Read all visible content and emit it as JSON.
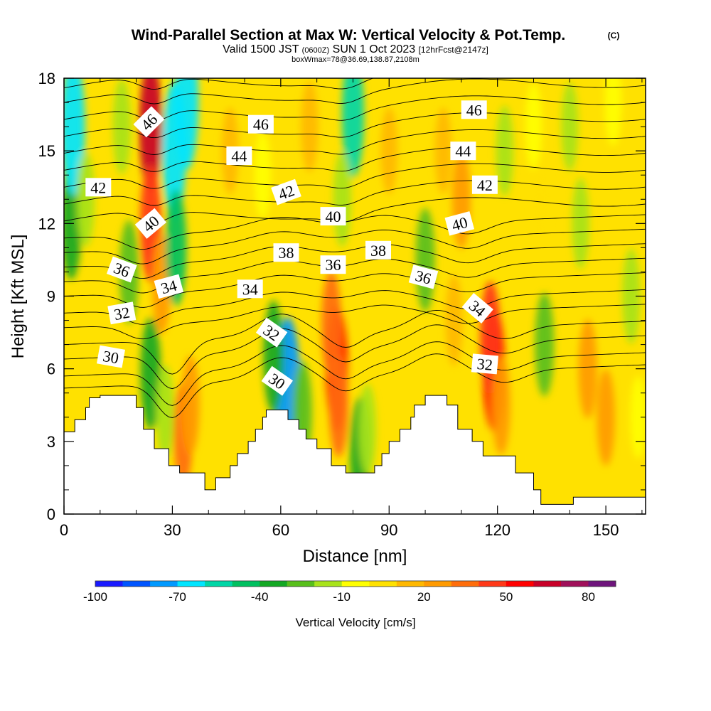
{
  "chart_data": {
    "type": "heatmap",
    "title": "Wind-Parallel Section at Max W: Vertical Velocity & Pot.Temp.",
    "copyright_mark": "(C)",
    "subtitle": {
      "valid": "Valid 1500 JST",
      "utc": "(0600Z)",
      "date": "SUN 1 Oct 2023",
      "forecast": "[12hrFcst@2147z]"
    },
    "box_info": "boxWmax=78@36.69,138.87,2108m",
    "xlabel": "Distance [nm]",
    "ylabel": "Height [Kft MSL]",
    "xlim": [
      0,
      161
    ],
    "ylim": [
      0,
      18
    ],
    "x_ticks": [
      0,
      30,
      60,
      90,
      120,
      150
    ],
    "y_ticks": [
      0,
      3,
      6,
      9,
      12,
      15,
      18
    ],
    "colorbar": {
      "label": "Vertical Velocity [cm/s]",
      "tick_labels": [
        "-100",
        "-70",
        "-40",
        "-10",
        "20",
        "50",
        "80"
      ],
      "tick_values": [
        -100,
        -70,
        -40,
        -10,
        20,
        50,
        80
      ],
      "range": [
        -100,
        90
      ],
      "colors": [
        "#1a1aff",
        "#0055ff",
        "#0099ff",
        "#00e5ff",
        "#00d6a6",
        "#00c060",
        "#13a823",
        "#58bf1b",
        "#a8e31a",
        "#ffff00",
        "#ffe100",
        "#ffb800",
        "#ff9a00",
        "#ff6d0a",
        "#ff3818",
        "#ff0000",
        "#c80028",
        "#a0105a",
        "#6e147c"
      ]
    },
    "terrain_kft": [
      [
        0,
        3.4
      ],
      [
        3,
        3.4
      ],
      [
        3,
        3.9
      ],
      [
        6,
        3.9
      ],
      [
        6,
        4.4
      ],
      [
        7,
        4.4
      ],
      [
        7,
        4.8
      ],
      [
        10,
        4.8
      ],
      [
        10,
        4.9
      ],
      [
        20,
        4.9
      ],
      [
        20,
        4.4
      ],
      [
        22,
        4.4
      ],
      [
        22,
        3.5
      ],
      [
        25,
        3.5
      ],
      [
        25,
        2.7
      ],
      [
        29,
        2.7
      ],
      [
        29,
        2.0
      ],
      [
        32,
        2.0
      ],
      [
        32,
        1.7
      ],
      [
        39,
        1.7
      ],
      [
        39,
        1.0
      ],
      [
        42,
        1.0
      ],
      [
        42,
        1.5
      ],
      [
        46,
        1.5
      ],
      [
        46,
        2.0
      ],
      [
        48,
        2.0
      ],
      [
        48,
        2.5
      ],
      [
        51,
        2.5
      ],
      [
        51,
        3.0
      ],
      [
        53,
        3.0
      ],
      [
        53,
        3.5
      ],
      [
        55,
        3.5
      ],
      [
        55,
        4.0
      ],
      [
        56,
        4.0
      ],
      [
        56,
        4.3
      ],
      [
        62,
        4.3
      ],
      [
        62,
        3.9
      ],
      [
        65,
        3.9
      ],
      [
        65,
        3.5
      ],
      [
        67,
        3.5
      ],
      [
        67,
        3.1
      ],
      [
        70,
        3.1
      ],
      [
        70,
        2.7
      ],
      [
        74,
        2.7
      ],
      [
        74,
        2.0
      ],
      [
        78,
        2.0
      ],
      [
        78,
        1.7
      ],
      [
        86,
        1.7
      ],
      [
        86,
        2.0
      ],
      [
        88,
        2.0
      ],
      [
        88,
        2.5
      ],
      [
        90,
        2.5
      ],
      [
        90,
        3.0
      ],
      [
        93,
        3.0
      ],
      [
        93,
        3.5
      ],
      [
        96,
        3.5
      ],
      [
        96,
        4.0
      ],
      [
        97,
        4.0
      ],
      [
        97,
        4.5
      ],
      [
        100,
        4.5
      ],
      [
        100,
        4.9
      ],
      [
        106,
        4.9
      ],
      [
        106,
        4.5
      ],
      [
        109,
        4.5
      ],
      [
        109,
        3.5
      ],
      [
        113,
        3.5
      ],
      [
        113,
        3.0
      ],
      [
        116,
        3.0
      ],
      [
        116,
        2.4
      ],
      [
        125,
        2.4
      ],
      [
        125,
        1.7
      ],
      [
        130,
        1.7
      ],
      [
        130,
        1.0
      ],
      [
        132,
        1.0
      ],
      [
        132,
        0.4
      ],
      [
        141,
        0.4
      ],
      [
        141,
        0.7
      ],
      [
        161,
        0.7
      ]
    ],
    "w_cells": [
      {
        "x": 2,
        "y": 12,
        "w": -40
      },
      {
        "x": 2.5,
        "y": 16,
        "w": -70
      },
      {
        "x": 6,
        "y": 13,
        "w": -20
      },
      {
        "x": 16,
        "y": 16,
        "w": -20
      },
      {
        "x": 18,
        "y": 10,
        "w": -30
      },
      {
        "x": 24,
        "y": 16,
        "w": 60
      },
      {
        "x": 24,
        "y": 12,
        "w": 45
      },
      {
        "x": 27,
        "y": 9.5,
        "w": 25
      },
      {
        "x": 30.5,
        "y": 15,
        "w": -70
      },
      {
        "x": 31,
        "y": 11,
        "w": -45
      },
      {
        "x": 34,
        "y": 17,
        "w": -65
      },
      {
        "x": 24,
        "y": 5.8,
        "w": -40
      },
      {
        "x": 28,
        "y": 4.2,
        "w": -20
      },
      {
        "x": 33,
        "y": 3.3,
        "w": 30
      },
      {
        "x": 35,
        "y": 4.5,
        "w": 25
      },
      {
        "x": 46,
        "y": 15,
        "w": 10
      },
      {
        "x": 55,
        "y": 14,
        "w": -10
      },
      {
        "x": 62,
        "y": 5.2,
        "w": -75
      },
      {
        "x": 58,
        "y": 6.5,
        "w": -40
      },
      {
        "x": 66,
        "y": 4.2,
        "w": -30
      },
      {
        "x": 75.5,
        "y": 6.0,
        "w": 55
      },
      {
        "x": 74,
        "y": 7.8,
        "w": 35
      },
      {
        "x": 76,
        "y": 4.5,
        "w": 30
      },
      {
        "x": 80,
        "y": 16.5,
        "w": -55
      },
      {
        "x": 77,
        "y": 13,
        "w": -20
      },
      {
        "x": 82,
        "y": 2.5,
        "w": -40
      },
      {
        "x": 84,
        "y": 3.5,
        "w": -15
      },
      {
        "x": 68,
        "y": 16,
        "w": 15
      },
      {
        "x": 90,
        "y": 15,
        "w": 10
      },
      {
        "x": 100,
        "y": 10.5,
        "w": -30
      },
      {
        "x": 105,
        "y": 15,
        "w": 10
      },
      {
        "x": 110,
        "y": 13,
        "w": 25
      },
      {
        "x": 108,
        "y": 8,
        "w": 15
      },
      {
        "x": 119,
        "y": 6.0,
        "w": 55
      },
      {
        "x": 118,
        "y": 7.3,
        "w": 40
      },
      {
        "x": 121,
        "y": 4.5,
        "w": 25
      },
      {
        "x": 122,
        "y": 15,
        "w": -15
      },
      {
        "x": 130,
        "y": 16,
        "w": -10
      },
      {
        "x": 133,
        "y": 7,
        "w": -30
      },
      {
        "x": 132,
        "y": 13,
        "w": 5
      },
      {
        "x": 140,
        "y": 16,
        "w": -12
      },
      {
        "x": 143,
        "y": 12,
        "w": -15
      },
      {
        "x": 145,
        "y": 6,
        "w": 25
      },
      {
        "x": 150,
        "y": 4,
        "w": 22
      },
      {
        "x": 152,
        "y": 17,
        "w": -10
      },
      {
        "x": 157,
        "y": 9,
        "w": -20
      },
      {
        "x": 159,
        "y": 4,
        "w": -5
      }
    ],
    "theta_levels": [
      {
        "value": 30,
        "y0": 5.2,
        "shape": "low"
      },
      {
        "value": 31,
        "y0": 5.7,
        "shape": "low"
      },
      {
        "value": 32,
        "y0": 6.4,
        "shape": "low"
      },
      {
        "value": 33,
        "y0": 7.0,
        "shape": "low"
      },
      {
        "value": 34,
        "y0": 7.7,
        "shape": "mid"
      },
      {
        "value": 35,
        "y0": 8.3,
        "shape": "mid"
      },
      {
        "value": 36,
        "y0": 9.0,
        "shape": "mid"
      },
      {
        "value": 37,
        "y0": 9.6,
        "shape": "mid"
      },
      {
        "value": 38,
        "y0": 10.2,
        "shape": "mid"
      },
      {
        "value": 39,
        "y0": 10.8,
        "shape": "mid"
      },
      {
        "value": 40,
        "y0": 11.4,
        "shape": "mid"
      },
      {
        "value": 41,
        "y0": 12.1,
        "shape": "high"
      },
      {
        "value": 42,
        "y0": 12.8,
        "shape": "high"
      },
      {
        "value": 43,
        "y0": 13.5,
        "shape": "high"
      },
      {
        "value": 44,
        "y0": 14.2,
        "shape": "high"
      },
      {
        "value": 45,
        "y0": 14.9,
        "shape": "high"
      },
      {
        "value": 46,
        "y0": 15.6,
        "shape": "high"
      },
      {
        "value": 47,
        "y0": 16.3,
        "shape": "high"
      },
      {
        "value": 48,
        "y0": 17.0,
        "shape": "high"
      },
      {
        "value": 49,
        "y0": 17.6,
        "shape": "high"
      }
    ],
    "contour_labels": [
      {
        "text": "46",
        "x": 23.5,
        "y": 16.2,
        "rot": -45
      },
      {
        "text": "46",
        "x": 54.5,
        "y": 16.1,
        "rot": 0
      },
      {
        "text": "46",
        "x": 113.5,
        "y": 16.7,
        "rot": 0
      },
      {
        "text": "44",
        "x": 48.5,
        "y": 14.8,
        "rot": 0
      },
      {
        "text": "44",
        "x": 110.5,
        "y": 15.0,
        "rot": 0
      },
      {
        "text": "42",
        "x": 9.5,
        "y": 13.5,
        "rot": 0
      },
      {
        "text": "42",
        "x": 61.5,
        "y": 13.3,
        "rot": -20
      },
      {
        "text": "42",
        "x": 116.5,
        "y": 13.6,
        "rot": 0
      },
      {
        "text": "40",
        "x": 24,
        "y": 12.0,
        "rot": -40
      },
      {
        "text": "40",
        "x": 74.5,
        "y": 12.3,
        "rot": 0
      },
      {
        "text": "40",
        "x": 109.5,
        "y": 12.0,
        "rot": -15
      },
      {
        "text": "38",
        "x": 61.5,
        "y": 10.8,
        "rot": 0
      },
      {
        "text": "38",
        "x": 87,
        "y": 10.9,
        "rot": 0
      },
      {
        "text": "36",
        "x": 16,
        "y": 10.1,
        "rot": 20
      },
      {
        "text": "36",
        "x": 74.5,
        "y": 10.3,
        "rot": 0
      },
      {
        "text": "36",
        "x": 99.5,
        "y": 9.8,
        "rot": 15
      },
      {
        "text": "34",
        "x": 29,
        "y": 9.4,
        "rot": -15
      },
      {
        "text": "34",
        "x": 51.5,
        "y": 9.3,
        "rot": 0
      },
      {
        "text": "34",
        "x": 114.5,
        "y": 8.5,
        "rot": 40
      },
      {
        "text": "32",
        "x": 16,
        "y": 8.3,
        "rot": -10
      },
      {
        "text": "32",
        "x": 57.5,
        "y": 7.5,
        "rot": 35
      },
      {
        "text": "32",
        "x": 116.5,
        "y": 6.2,
        "rot": 5
      },
      {
        "text": "30",
        "x": 13,
        "y": 6.5,
        "rot": 10
      },
      {
        "text": "30",
        "x": 59,
        "y": 5.5,
        "rot": 35
      }
    ]
  }
}
